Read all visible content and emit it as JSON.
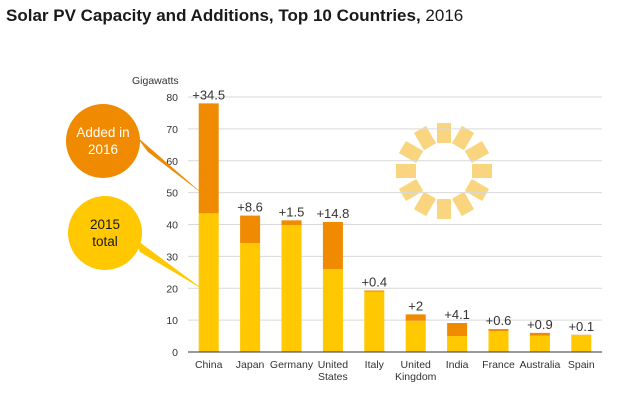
{
  "title": {
    "main": "Solar PV Capacity and Additions, Top 10 Countries,",
    "year": "2016"
  },
  "legend": {
    "added": "Added in 2016",
    "base": "2015 total"
  },
  "colors": {
    "added": "#f08a00",
    "base": "#ffc800",
    "gridline": "#d9d9d9",
    "axis": "#333333",
    "text": "#333333",
    "sun": "#f9d580"
  },
  "chart_data": {
    "type": "bar",
    "stacked": true,
    "title": "Solar PV Capacity and Additions, Top 10 Countries, 2016",
    "ylabel": "Gigawatts",
    "ylim": [
      0,
      80
    ],
    "yticks": [
      0,
      10,
      20,
      30,
      40,
      50,
      60,
      70,
      80
    ],
    "categories": [
      "China",
      "Japan",
      "Germany",
      "United States",
      "Italy",
      "United Kingdom",
      "India",
      "France",
      "Australia",
      "Spain"
    ],
    "series": [
      {
        "name": "2015 total",
        "values": [
          43.5,
          34.2,
          39.8,
          26.0,
          18.9,
          9.8,
          5.0,
          6.6,
          5.1,
          5.3
        ]
      },
      {
        "name": "Added in 2016",
        "values": [
          34.5,
          8.6,
          1.5,
          14.8,
          0.4,
          2.0,
          4.1,
          0.6,
          0.9,
          0.1
        ]
      }
    ],
    "data_labels": [
      "+34.5",
      "+8.6",
      "+1.5",
      "+14.8",
      "+0.4",
      "+2",
      "+4.1",
      "+0.6",
      "+0.9",
      "+0.1"
    ]
  }
}
